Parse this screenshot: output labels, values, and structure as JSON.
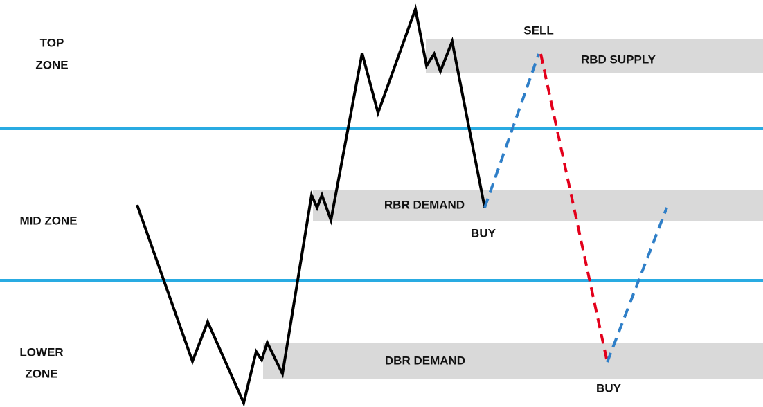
{
  "zones": [
    {
      "lines": [
        "TOP",
        "ZONE"
      ]
    },
    {
      "lines": [
        "MID ZONE"
      ]
    },
    {
      "lines": [
        "LOWER",
        "ZONE"
      ]
    }
  ],
  "areas": [
    {
      "label": "RBD SUPPLY"
    },
    {
      "label": "RBR DEMAND"
    },
    {
      "label": "DBR DEMAND"
    }
  ],
  "signals": [
    {
      "label": "SELL"
    },
    {
      "label": "BUY"
    },
    {
      "label": "BUY"
    }
  ]
}
